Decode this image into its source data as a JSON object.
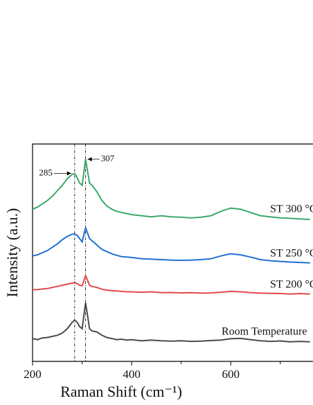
{
  "chart_data": {
    "type": "line",
    "xlabel": "Raman Shift (cm⁻¹)",
    "ylabel": "Intensity (a.u.)",
    "xlim": [
      200,
      766
    ],
    "ylim": [
      0,
      100
    ],
    "xticks": [
      200,
      400,
      600
    ],
    "xticks_minor": [
      300,
      500,
      700
    ],
    "vlines": [
      285,
      307
    ],
    "annotations": [
      {
        "text": "285",
        "x": 285
      },
      {
        "text": "307",
        "x": 307
      }
    ],
    "x": [
      200,
      210,
      220,
      230,
      240,
      250,
      260,
      270,
      280,
      285,
      290,
      295,
      300,
      307,
      315,
      320,
      330,
      340,
      350,
      360,
      370,
      380,
      390,
      400,
      420,
      440,
      460,
      480,
      500,
      520,
      540,
      560,
      580,
      600,
      620,
      640,
      660,
      680,
      700,
      720,
      740,
      760
    ],
    "series": [
      {
        "name": "Room Temperature",
        "color": "#4a4a4a",
        "values": [
          10.5,
          10,
          10.8,
          11,
          11.5,
          12,
          13,
          15,
          18,
          19,
          18,
          16,
          15,
          27,
          15,
          14,
          13.5,
          12,
          11,
          10.5,
          10,
          10.2,
          9.8,
          10,
          9.5,
          9.8,
          9.5,
          9.3,
          9.5,
          9.2,
          9.3,
          9.6,
          9.8,
          10.4,
          10.6,
          10,
          9.5,
          9.2,
          9.4,
          9,
          9.2,
          9
        ]
      },
      {
        "name": "ST 200 °C",
        "color": "#e04848",
        "values": [
          33,
          33,
          33.3,
          33.5,
          34,
          34.5,
          35,
          35.5,
          36,
          36.2,
          35.8,
          35,
          34.8,
          39.5,
          35,
          34.5,
          34,
          33.2,
          32.8,
          32.5,
          32.4,
          32.2,
          32,
          32,
          31.8,
          32,
          31.6,
          31.7,
          31.5,
          31.6,
          31.4,
          31.5,
          31.8,
          32.2,
          32,
          31.6,
          31.4,
          31.3,
          31.2,
          31,
          31.2,
          31
        ]
      },
      {
        "name": "ST 250 °C",
        "color": "#1f6fd1",
        "values": [
          48.5,
          49,
          50,
          51,
          52.5,
          54,
          56,
          57.5,
          58.5,
          58.6,
          58,
          56.5,
          55,
          61.5,
          56.5,
          55.5,
          53.5,
          51.5,
          50.5,
          49.5,
          48.8,
          48.2,
          48,
          47.8,
          47.2,
          47,
          46.8,
          46.6,
          46.5,
          46.6,
          46.8,
          47.2,
          48.5,
          49.5,
          49,
          48,
          46.8,
          46.3,
          46,
          45.7,
          45.5,
          45.3
        ]
      },
      {
        "name": "ST 300 °C",
        "color": "#3aa86b",
        "values": [
          70,
          71,
          72.5,
          74,
          76,
          78.5,
          81,
          84,
          86,
          86.5,
          84.5,
          82,
          81,
          93,
          82,
          81,
          78,
          74,
          71.5,
          70,
          69,
          68.5,
          68,
          67.5,
          67,
          66.5,
          67,
          66.5,
          66.3,
          66,
          66.3,
          67,
          69,
          70.5,
          70,
          68.5,
          67,
          66.5,
          66,
          65.8,
          65.5,
          65.3
        ]
      }
    ]
  }
}
